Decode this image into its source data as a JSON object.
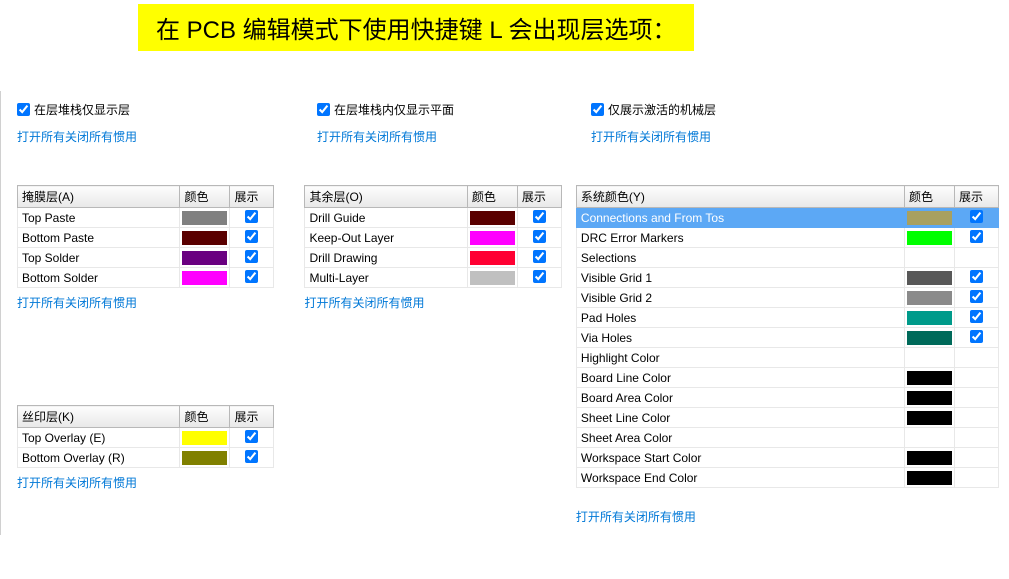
{
  "title": "在 PCB 编辑模式下使用快捷键 L 会出现层选项：",
  "top_checks": [
    {
      "label": "在层堆栈仅显示层",
      "checked": true
    },
    {
      "label": "在层堆栈内仅显示平面",
      "checked": true
    },
    {
      "label": "仅展示激活的机械层",
      "checked": true
    }
  ],
  "link_text": "打开所有关闭所有惯用",
  "headers": {
    "name": "",
    "color": "颜色",
    "show": "展示"
  },
  "mask": {
    "header": "掩膜层(A)",
    "rows": [
      {
        "name": "Top Paste",
        "color": "#808080",
        "show": true
      },
      {
        "name": "Bottom Paste",
        "color": "#5a0000",
        "show": true
      },
      {
        "name": "Top Solder",
        "color": "#6a0080",
        "show": true
      },
      {
        "name": "Bottom Solder",
        "color": "#ff00ff",
        "show": true
      }
    ]
  },
  "silk": {
    "header": "丝印层(K)",
    "rows": [
      {
        "name": "Top Overlay (E)",
        "color": "#ffff00",
        "show": true
      },
      {
        "name": "Bottom Overlay (R)",
        "color": "#808000",
        "show": true
      }
    ]
  },
  "other": {
    "header": "其余层(O)",
    "rows": [
      {
        "name": "Drill Guide",
        "color": "#5a0000",
        "show": true
      },
      {
        "name": "Keep-Out Layer",
        "color": "#ff00ff",
        "show": true
      },
      {
        "name": "Drill Drawing",
        "color": "#ff0033",
        "show": true
      },
      {
        "name": "Multi-Layer",
        "color": "#c0c0c0",
        "show": true
      }
    ]
  },
  "system": {
    "header": "系统颜色(Y)",
    "rows": [
      {
        "name": "Connections and From Tos",
        "color": "#a8a060",
        "show": true,
        "selected": true
      },
      {
        "name": "DRC Error Markers",
        "color": "#00ff00",
        "show": true
      },
      {
        "name": "Selections",
        "color": null,
        "show": null
      },
      {
        "name": "Visible Grid 1",
        "color": "#585858",
        "show": true
      },
      {
        "name": "Visible Grid 2",
        "color": "#8a8a8a",
        "show": true
      },
      {
        "name": "Pad Holes",
        "color": "#009a8a",
        "show": true
      },
      {
        "name": "Via Holes",
        "color": "#006a5a",
        "show": true
      },
      {
        "name": "Highlight Color",
        "color": null,
        "show": null
      },
      {
        "name": "Board Line Color",
        "color": "#000000",
        "show": null
      },
      {
        "name": "Board Area Color",
        "color": "#000000",
        "show": null
      },
      {
        "name": "Sheet Line Color",
        "color": "#000000",
        "show": null
      },
      {
        "name": "Sheet Area Color",
        "color": null,
        "show": null
      },
      {
        "name": "Workspace Start Color",
        "color": "#000000",
        "show": null
      },
      {
        "name": "Workspace End Color",
        "color": "#000000",
        "show": null
      }
    ]
  }
}
